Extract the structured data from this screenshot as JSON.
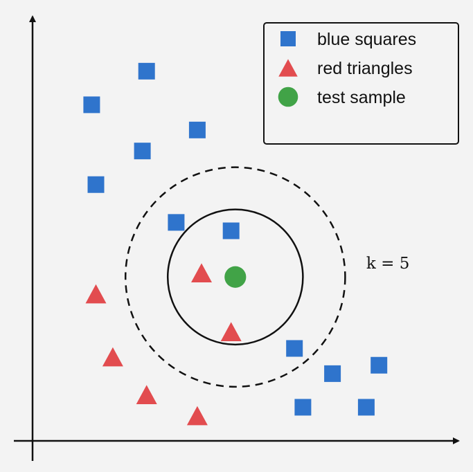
{
  "chart_data": {
    "type": "scatter",
    "title": "",
    "xlabel": "",
    "ylabel": "",
    "xlim": [
      0,
      100
    ],
    "ylim": [
      0,
      100
    ],
    "axis_arrows": true,
    "grid": false,
    "legend_position": "top-right",
    "colors": {
      "blue": "#2f74cc",
      "red": "#e24c4f",
      "green": "#41a347",
      "axis": "#111111",
      "background": "#f3f3f3"
    },
    "series": [
      {
        "name": "blue squares",
        "marker": "square",
        "color": "#2f74cc",
        "points": [
          {
            "x": 27,
            "y": 88
          },
          {
            "x": 14,
            "y": 80
          },
          {
            "x": 39,
            "y": 74
          },
          {
            "x": 26,
            "y": 69
          },
          {
            "x": 15,
            "y": 61
          },
          {
            "x": 34,
            "y": 52
          },
          {
            "x": 47,
            "y": 50
          },
          {
            "x": 62,
            "y": 22
          },
          {
            "x": 71,
            "y": 16
          },
          {
            "x": 82,
            "y": 18
          },
          {
            "x": 64,
            "y": 8
          },
          {
            "x": 79,
            "y": 8
          }
        ]
      },
      {
        "name": "red triangles",
        "marker": "triangle",
        "color": "#e24c4f",
        "points": [
          {
            "x": 40,
            "y": 40
          },
          {
            "x": 47,
            "y": 26
          },
          {
            "x": 15,
            "y": 35
          },
          {
            "x": 19,
            "y": 20
          },
          {
            "x": 27,
            "y": 11
          },
          {
            "x": 39,
            "y": 6
          }
        ]
      },
      {
        "name": "test sample",
        "marker": "circle",
        "color": "#41a347",
        "points": [
          {
            "x": 48,
            "y": 39
          }
        ]
      }
    ],
    "annotations": [
      {
        "kind": "circle",
        "style": "solid",
        "center": {
          "x": 48,
          "y": 39
        },
        "radius": 16,
        "neighbors_k": 3
      },
      {
        "kind": "circle",
        "style": "dashed",
        "center": {
          "x": 48,
          "y": 39
        },
        "radius": 26,
        "neighbors_k": 5
      },
      {
        "kind": "text",
        "text": "k = 5",
        "at": {
          "x": 79,
          "y": 41
        }
      }
    ]
  }
}
